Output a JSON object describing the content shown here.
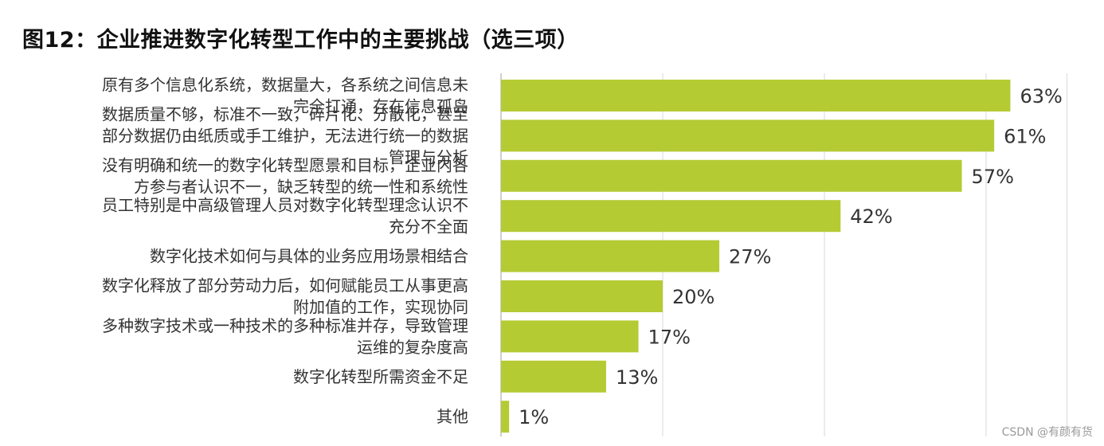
{
  "chart_data": {
    "type": "bar",
    "orientation": "horizontal",
    "title": "图12：企业推进数字化转型工作中的主要挑战（选三项）",
    "xlim": [
      0,
      70
    ],
    "grid": true,
    "color": "#b5cb34",
    "categories": [
      [
        "原有多个信息化系统，数据量大，各系统之间信息未",
        "完全打通，存在信息孤岛"
      ],
      [
        "数据质量不够，标准不一致，碎片化、分散化，甚至",
        "部分数据仍由纸质或手工维护，无法进行统一的数据",
        "管理与分析"
      ],
      [
        "没有明确和统一的数字化转型愿景和目标，企业内各",
        "方参与者认识不一，缺乏转型的统一性和系统性"
      ],
      [
        "员工特别是中高级管理人员对数字化转型理念认识不",
        "充分不全面"
      ],
      [
        "数字化技术如何与具体的业务应用场景相结合"
      ],
      [
        "数字化释放了部分劳动力后，如何赋能员工从事更高",
        "附加值的工作，实现协同"
      ],
      [
        "多种数字技术或一种技术的多种标准并存，导致管理",
        "运维的复杂度高"
      ],
      [
        "数字化转型所需资金不足"
      ],
      [
        "其他"
      ]
    ],
    "values": [
      63,
      61,
      57,
      42,
      27,
      20,
      17,
      13,
      1
    ],
    "value_labels": [
      "63%",
      "61%",
      "57%",
      "42%",
      "27%",
      "20%",
      "17%",
      "13%",
      "1%"
    ]
  },
  "watermark": "CSDN @有颜有货"
}
